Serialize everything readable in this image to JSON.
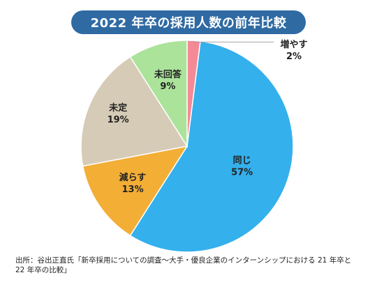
{
  "chart_data": {
    "type": "pie",
    "title": "2022 年卒の採用人数の前年比較",
    "slices": [
      {
        "label": "増やす",
        "value": 2,
        "value_label": "2%",
        "color": "#f48a96"
      },
      {
        "label": "同じ",
        "value": 57,
        "value_label": "57%",
        "color": "#34b0ec"
      },
      {
        "label": "減らす",
        "value": 13,
        "value_label": "13%",
        "color": "#f3ae36"
      },
      {
        "label": "未定",
        "value": 19,
        "value_label": "19%",
        "color": "#d6cbb6"
      },
      {
        "label": "未回答",
        "value": 9,
        "value_label": "9%",
        "color": "#abe39a"
      }
    ],
    "start_angle_deg": 0,
    "direction": "clockwise",
    "legend": "none"
  },
  "source": {
    "line1": "出所：谷出正直氏「新卒採用についての調査～大手・優良企業のインターンシップにおける 21 年卒と",
    "line2": "22 年卒の比較」"
  }
}
